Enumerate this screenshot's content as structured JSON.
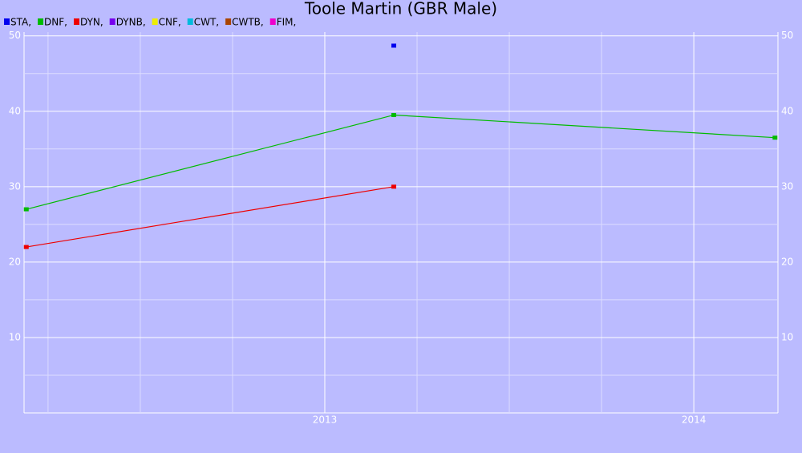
{
  "chart_data": {
    "type": "line",
    "title": "Toole Martin (GBR Male)",
    "x": [
      2012.191,
      2013.187,
      2014.22
    ],
    "series": [
      {
        "name": "STA,",
        "color": "#0000ee",
        "values": [
          null,
          48.7,
          null
        ]
      },
      {
        "name": "DNF,",
        "color": "#00bb00",
        "values": [
          27,
          39.5,
          36.5
        ]
      },
      {
        "name": "DYN,",
        "color": "#ee0000",
        "values": [
          22,
          30,
          null
        ]
      },
      {
        "name": "DYNB,",
        "color": "#7700ee",
        "values": [
          null,
          null,
          null
        ]
      },
      {
        "name": "CNF,",
        "color": "#eeee00",
        "values": [
          null,
          null,
          null
        ]
      },
      {
        "name": "CWT,",
        "color": "#00bbdd",
        "values": [
          null,
          null,
          null
        ]
      },
      {
        "name": "CWTB,",
        "color": "#aa4400",
        "values": [
          null,
          null,
          null
        ]
      },
      {
        "name": "FIM,",
        "color": "#ee00cc",
        "values": [
          null,
          null,
          null
        ]
      }
    ],
    "xlim": [
      2012.185,
      2014.228
    ],
    "xticks": [
      2013,
      2014
    ],
    "x_minor_ticks": [
      2012.25,
      2012.5,
      2012.75,
      2013.25,
      2013.5,
      2013.75
    ],
    "ylim": [
      0,
      50.5
    ],
    "yticks": [
      10,
      20,
      30,
      40,
      50
    ],
    "y_minor_ticks": [
      5,
      15,
      25,
      35,
      45
    ],
    "grid": true
  }
}
